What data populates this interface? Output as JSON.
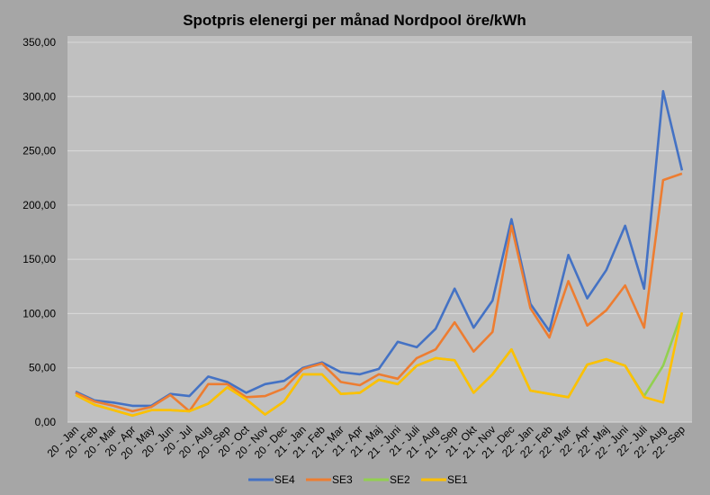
{
  "chart_data": {
    "type": "line",
    "title": "Spotpris elenergi per månad Nordpool öre/kWh",
    "xlabel": "",
    "ylabel": "",
    "ylim": [
      0,
      350
    ],
    "yticks": [
      "0,00",
      "50,00",
      "100,00",
      "150,00",
      "200,00",
      "250,00",
      "300,00",
      "350,00"
    ],
    "grid": true,
    "legend_position": "bottom",
    "categories": [
      "20 - Jan",
      "20 - Feb",
      "20 - Mar",
      "20 - Apr",
      "20 - May",
      "20 - Jun",
      "20 - Jul",
      "20 - Aug",
      "20 - Sep",
      "20 - Oct",
      "20 - Nov",
      "20 - Dec",
      "21 - Jan",
      "21 - Feb",
      "21 - Mar",
      "21 - Apr",
      "21 - Maj",
      "21 - Juni",
      "21 - Juli",
      "21 - Aug",
      "21 - Sep",
      "21 - Okt",
      "21 - Nov",
      "21 - Dec",
      "22 - Jan",
      "22 - Feb",
      "22 - Mar",
      "22 - Apr",
      "22 - Maj",
      "22 - Juni",
      "22 - Juli",
      "22 - Aug",
      "22 - Sep"
    ],
    "series": [
      {
        "name": "SE4",
        "color": "#4472c4",
        "values": [
          28,
          20,
          18,
          15,
          15,
          26,
          24,
          42,
          37,
          27,
          35,
          38,
          50,
          55,
          46,
          44,
          49,
          74,
          69,
          86,
          123,
          87,
          112,
          187,
          109,
          84,
          154,
          114,
          140,
          181,
          123,
          305,
          232
        ]
      },
      {
        "name": "SE3",
        "color": "#ed7d31",
        "values": [
          27,
          19,
          15,
          10,
          14,
          25,
          10,
          35,
          35,
          23,
          24,
          31,
          49,
          54,
          37,
          34,
          44,
          40,
          59,
          67,
          92,
          65,
          83,
          181,
          105,
          78,
          130,
          89,
          103,
          126,
          87,
          223,
          229
        ]
      },
      {
        "name": "SE2",
        "color": "#92d050",
        "values": [
          25,
          16,
          11,
          6,
          11,
          11,
          10,
          17,
          32,
          21,
          7,
          19,
          44,
          44,
          26,
          27,
          39,
          35,
          52,
          59,
          57,
          27,
          44,
          67,
          29,
          26,
          23,
          53,
          58,
          52,
          24,
          52,
          101
        ]
      },
      {
        "name": "SE1",
        "color": "#ffc000",
        "values": [
          25,
          16,
          11,
          6,
          11,
          11,
          10,
          17,
          32,
          21,
          7,
          19,
          44,
          44,
          26,
          27,
          39,
          35,
          52,
          59,
          57,
          27,
          44,
          67,
          29,
          26,
          23,
          53,
          58,
          52,
          23,
          18,
          101
        ]
      }
    ]
  }
}
